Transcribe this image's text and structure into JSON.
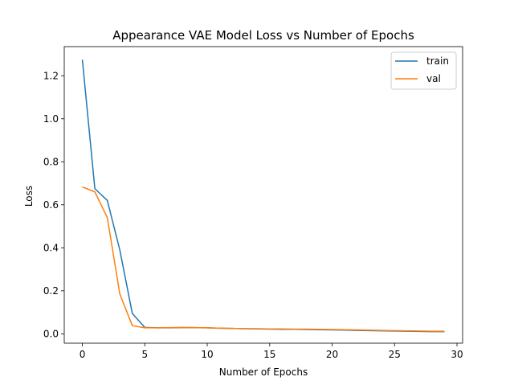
{
  "chart_data": {
    "type": "line",
    "title": "Appearance VAE Model Loss vs Number of Epochs",
    "xlabel": "Number of Epochs",
    "ylabel": "Loss",
    "xlim": [
      -1.45,
      30.45
    ],
    "ylim": [
      -0.0435,
      1.3355
    ],
    "xticks": [
      0,
      5,
      10,
      15,
      20,
      25,
      30
    ],
    "yticks": [
      0.0,
      0.2,
      0.4,
      0.6,
      0.8,
      1.0,
      1.2
    ],
    "xtick_labels": [
      "0",
      "5",
      "10",
      "15",
      "20",
      "25",
      "30"
    ],
    "ytick_labels": [
      "0.0",
      "0.2",
      "0.4",
      "0.6",
      "0.8",
      "1.0",
      "1.2"
    ],
    "grid": false,
    "legend_position": "top-right",
    "x": [
      0,
      1,
      2,
      3,
      4,
      5,
      6,
      7,
      8,
      9,
      10,
      11,
      12,
      13,
      14,
      15,
      16,
      17,
      18,
      19,
      20,
      21,
      22,
      23,
      24,
      25,
      26,
      27,
      28,
      29
    ],
    "series": [
      {
        "name": "train",
        "color": "#1f77b4",
        "values": [
          1.275,
          0.675,
          0.62,
          0.39,
          0.095,
          0.03,
          0.028,
          0.028,
          0.029,
          0.029,
          0.028,
          0.026,
          0.025,
          0.024,
          0.023,
          0.022,
          0.021,
          0.021,
          0.02,
          0.019,
          0.018,
          0.017,
          0.016,
          0.015,
          0.014,
          0.013,
          0.012,
          0.011,
          0.01,
          0.01
        ]
      },
      {
        "name": "val",
        "color": "#ff7f0e",
        "values": [
          0.683,
          0.66,
          0.54,
          0.185,
          0.038,
          0.028,
          0.028,
          0.029,
          0.03,
          0.029,
          0.028,
          0.026,
          0.025,
          0.024,
          0.024,
          0.023,
          0.023,
          0.022,
          0.022,
          0.021,
          0.02,
          0.019,
          0.018,
          0.017,
          0.016,
          0.015,
          0.014,
          0.013,
          0.012,
          0.012
        ]
      }
    ]
  }
}
